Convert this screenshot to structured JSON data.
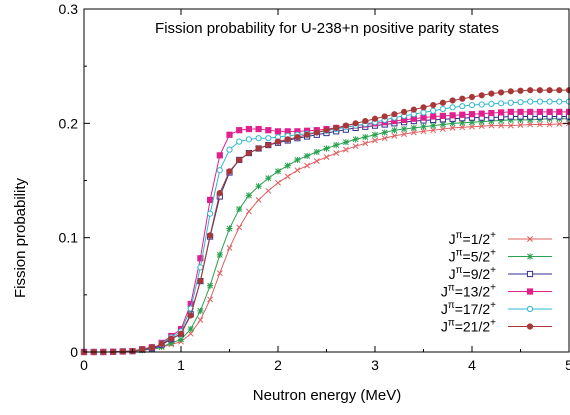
{
  "chart_data": {
    "type": "line",
    "title": "Fission probability for U-238+n positive parity states",
    "xlabel": "Neutron energy (MeV)",
    "ylabel": "Fission probability",
    "xlim": [
      0,
      5
    ],
    "ylim": [
      0,
      0.3
    ],
    "x_ticks": [
      "0",
      "1",
      "2",
      "3",
      "4",
      "5"
    ],
    "y_ticks": [
      "0",
      "0.1",
      "0.2",
      "0.3"
    ],
    "x_tick_values": [
      0,
      1,
      2,
      3,
      4,
      5
    ],
    "y_tick_values": [
      0,
      0.1,
      0.2,
      0.3
    ],
    "grid": false,
    "legend_position": "right",
    "series": [
      {
        "name": "Jπ=1/2+",
        "j_label": "J",
        "pi_label": "π",
        "value_label": "=1/2",
        "parity_label": "+",
        "color": "#e06060",
        "marker": "cross",
        "x": [
          0,
          0.25,
          0.5,
          0.75,
          1.0,
          1.1,
          1.2,
          1.3,
          1.4,
          1.5,
          1.6,
          1.7,
          1.8,
          1.9,
          2.0,
          2.2,
          2.4,
          2.6,
          2.8,
          3.0,
          3.2,
          3.4,
          3.6,
          3.8,
          4.0,
          4.2,
          4.4,
          4.6,
          4.8,
          5.0
        ],
        "y": [
          0.0,
          0.0,
          0.0005,
          0.003,
          0.009,
          0.016,
          0.028,
          0.046,
          0.069,
          0.091,
          0.109,
          0.123,
          0.133,
          0.141,
          0.148,
          0.159,
          0.167,
          0.174,
          0.18,
          0.185,
          0.189,
          0.192,
          0.194,
          0.196,
          0.197,
          0.198,
          0.198,
          0.199,
          0.199,
          0.2
        ]
      },
      {
        "name": "Jπ=5/2+",
        "j_label": "J",
        "pi_label": "π",
        "value_label": "=5/2",
        "parity_label": "+",
        "color": "#2aa050",
        "marker": "star",
        "x": [
          0,
          0.25,
          0.5,
          0.75,
          1.0,
          1.1,
          1.2,
          1.3,
          1.4,
          1.5,
          1.6,
          1.7,
          1.8,
          1.9,
          2.0,
          2.2,
          2.4,
          2.6,
          2.8,
          3.0,
          3.2,
          3.4,
          3.6,
          3.8,
          4.0,
          4.2,
          4.4,
          4.6,
          4.8,
          5.0
        ],
        "y": [
          0.0,
          0.0,
          0.0006,
          0.003,
          0.011,
          0.02,
          0.036,
          0.058,
          0.085,
          0.108,
          0.125,
          0.137,
          0.145,
          0.152,
          0.158,
          0.168,
          0.175,
          0.181,
          0.186,
          0.19,
          0.194,
          0.196,
          0.198,
          0.2,
          0.201,
          0.202,
          0.203,
          0.203,
          0.204,
          0.204
        ]
      },
      {
        "name": "Jπ=9/2+",
        "j_label": "J",
        "pi_label": "π",
        "value_label": "=9/2",
        "parity_label": "+",
        "color": "#303090",
        "marker": "square",
        "x": [
          0,
          0.25,
          0.5,
          0.75,
          1.0,
          1.1,
          1.2,
          1.3,
          1.4,
          1.5,
          1.6,
          1.7,
          1.8,
          1.9,
          2.0,
          2.2,
          2.4,
          2.6,
          2.8,
          3.0,
          3.2,
          3.4,
          3.6,
          3.8,
          4.0,
          4.2,
          4.4,
          4.6,
          4.8,
          5.0
        ],
        "y": [
          0.0,
          0.0,
          0.0008,
          0.004,
          0.016,
          0.033,
          0.062,
          0.101,
          0.136,
          0.157,
          0.168,
          0.174,
          0.178,
          0.181,
          0.183,
          0.187,
          0.19,
          0.193,
          0.196,
          0.198,
          0.2,
          0.202,
          0.203,
          0.204,
          0.205,
          0.205,
          0.206,
          0.206,
          0.206,
          0.206
        ]
      },
      {
        "name": "Jπ=13/2+",
        "j_label": "J",
        "pi_label": "π",
        "value_label": "=13/2",
        "parity_label": "+",
        "color": "#e0208c",
        "marker": "filled-square",
        "x": [
          0,
          0.25,
          0.5,
          0.75,
          1.0,
          1.1,
          1.2,
          1.3,
          1.4,
          1.5,
          1.6,
          1.7,
          1.8,
          1.9,
          2.0,
          2.2,
          2.4,
          2.6,
          2.8,
          3.0,
          3.2,
          3.4,
          3.6,
          3.8,
          4.0,
          4.2,
          4.4,
          4.6,
          4.8,
          5.0
        ],
        "y": [
          0.0,
          0.0,
          0.0008,
          0.005,
          0.02,
          0.042,
          0.082,
          0.133,
          0.172,
          0.19,
          0.194,
          0.195,
          0.195,
          0.194,
          0.193,
          0.193,
          0.194,
          0.196,
          0.198,
          0.2,
          0.202,
          0.204,
          0.206,
          0.207,
          0.208,
          0.209,
          0.21,
          0.21,
          0.21,
          0.21
        ]
      },
      {
        "name": "Jπ=17/2+",
        "j_label": "J",
        "pi_label": "π",
        "value_label": "=17/2",
        "parity_label": "+",
        "color": "#30b8d0",
        "marker": "circle",
        "x": [
          0,
          0.25,
          0.5,
          0.75,
          1.0,
          1.1,
          1.2,
          1.3,
          1.4,
          1.5,
          1.6,
          1.7,
          1.8,
          1.9,
          2.0,
          2.2,
          2.4,
          2.6,
          2.8,
          3.0,
          3.2,
          3.4,
          3.6,
          3.8,
          4.0,
          4.2,
          4.4,
          4.6,
          4.8,
          5.0
        ],
        "y": [
          0.0,
          0.0,
          0.0008,
          0.005,
          0.018,
          0.038,
          0.074,
          0.121,
          0.159,
          0.177,
          0.184,
          0.186,
          0.187,
          0.187,
          0.188,
          0.19,
          0.192,
          0.195,
          0.198,
          0.201,
          0.205,
          0.208,
          0.211,
          0.214,
          0.216,
          0.217,
          0.218,
          0.219,
          0.219,
          0.219
        ]
      },
      {
        "name": "Jπ=21/2+",
        "j_label": "J",
        "pi_label": "π",
        "value_label": "=21/2",
        "parity_label": "+",
        "color": "#a83838",
        "marker": "filled-circle",
        "x": [
          0,
          0.25,
          0.5,
          0.75,
          1.0,
          1.1,
          1.2,
          1.3,
          1.4,
          1.5,
          1.6,
          1.7,
          1.8,
          1.9,
          2.0,
          2.2,
          2.4,
          2.6,
          2.8,
          3.0,
          3.2,
          3.4,
          3.6,
          3.8,
          4.0,
          4.2,
          4.4,
          4.6,
          4.8,
          5.0
        ],
        "y": [
          0.0,
          0.0,
          0.0008,
          0.005,
          0.016,
          0.032,
          0.062,
          0.102,
          0.139,
          0.158,
          0.168,
          0.174,
          0.178,
          0.181,
          0.184,
          0.188,
          0.192,
          0.196,
          0.2,
          0.204,
          0.208,
          0.212,
          0.216,
          0.22,
          0.223,
          0.226,
          0.228,
          0.229,
          0.229,
          0.229
        ]
      }
    ]
  }
}
